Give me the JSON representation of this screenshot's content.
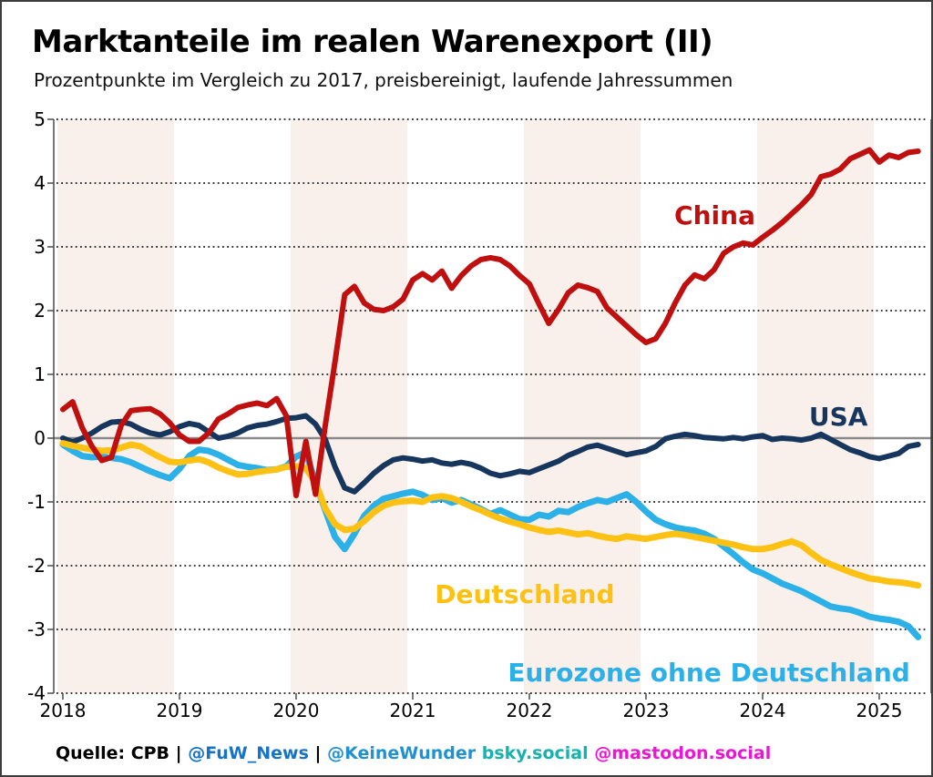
{
  "header": {
    "title": "Marktanteile im realen Warenexport (II)",
    "subtitle": "Prozentpunkte im Vergleich zu 2017, preisbereinigt, laufende Jahressummen"
  },
  "footer": {
    "segments": [
      {
        "text": "Quelle: CPB",
        "color": "#000000"
      },
      {
        "text": " | ",
        "color": "#000000"
      },
      {
        "text": "@FuW_News",
        "color": "#1673c6"
      },
      {
        "text": " | ",
        "color": "#000000"
      },
      {
        "text": "@KeineWunder",
        "color": "#2091d1"
      },
      {
        "text": " ",
        "color": "#000000"
      },
      {
        "text": "bsky.social",
        "color": "#16b2ad"
      },
      {
        "text": " ",
        "color": "#000000"
      },
      {
        "text": "@mastodon.social",
        "color": "#ef13d4"
      }
    ]
  },
  "chart_data": {
    "type": "line",
    "title": "Marktanteile im realen Warenexport (II)",
    "subtitle": "Prozentpunkte im Vergleich zu 2017, preisbereinigt, laufende Jahressummen",
    "xlabel": "",
    "ylabel": "",
    "x_monthly_start": "2018-01",
    "x_monthly_end": "2025-05",
    "xticks": [
      2018,
      2019,
      2020,
      2021,
      2022,
      2023,
      2024,
      2025
    ],
    "ylim": [
      -4,
      5
    ],
    "yticks": [
      5,
      4,
      3,
      2,
      1,
      0,
      -1,
      -2,
      -3,
      -4
    ],
    "grid": "horizontal dotted black lines at every integer",
    "zero_line": true,
    "legend_position": "inline annotations next to lines",
    "background_band_years": [
      2018,
      2020,
      2022,
      2024
    ],
    "colors": {
      "band": "#faf0eb",
      "zero_line": "#8a8a8a",
      "spine": "#4a4a4a",
      "grid": "#1c1c1c"
    },
    "series": [
      {
        "name": "China",
        "color": "#c00f0f",
        "stroke": 6,
        "z": 4,
        "values": [
          0.45,
          0.57,
          0.16,
          -0.13,
          -0.35,
          -0.3,
          0.2,
          0.43,
          0.45,
          0.46,
          0.38,
          0.24,
          0.05,
          -0.05,
          -0.05,
          0.08,
          0.3,
          0.38,
          0.48,
          0.52,
          0.55,
          0.51,
          0.62,
          0.35,
          -0.9,
          -0.05,
          -0.88,
          0.2,
          1.2,
          2.25,
          2.38,
          2.12,
          2.02,
          2.0,
          2.06,
          2.18,
          2.48,
          2.58,
          2.48,
          2.62,
          2.35,
          2.55,
          2.7,
          2.8,
          2.83,
          2.8,
          2.7,
          2.55,
          2.42,
          2.1,
          1.8,
          2.02,
          2.28,
          2.4,
          2.36,
          2.3,
          2.04,
          1.9,
          1.76,
          1.62,
          1.5,
          1.56,
          1.8,
          2.12,
          2.4,
          2.56,
          2.5,
          2.64,
          2.9,
          3.0,
          3.06,
          3.03,
          3.15,
          3.26,
          3.38,
          3.52,
          3.66,
          3.82,
          4.1,
          4.14,
          4.22,
          4.38,
          4.45,
          4.52,
          4.33,
          4.44,
          4.4,
          4.48,
          4.5
        ]
      },
      {
        "name": "USA",
        "color": "#17365d",
        "stroke": 6,
        "z": 1,
        "values": [
          0.0,
          -0.06,
          0.0,
          0.08,
          0.18,
          0.25,
          0.26,
          0.22,
          0.14,
          0.08,
          0.05,
          0.1,
          0.18,
          0.23,
          0.2,
          0.1,
          0.0,
          0.03,
          0.08,
          0.16,
          0.2,
          0.22,
          0.26,
          0.31,
          0.32,
          0.35,
          0.22,
          -0.02,
          -0.45,
          -0.78,
          -0.84,
          -0.7,
          -0.55,
          -0.43,
          -0.34,
          -0.31,
          -0.33,
          -0.36,
          -0.34,
          -0.39,
          -0.41,
          -0.38,
          -0.41,
          -0.47,
          -0.55,
          -0.59,
          -0.56,
          -0.52,
          -0.54,
          -0.48,
          -0.42,
          -0.36,
          -0.27,
          -0.21,
          -0.14,
          -0.11,
          -0.16,
          -0.21,
          -0.26,
          -0.23,
          -0.2,
          -0.13,
          -0.01,
          0.03,
          0.06,
          0.04,
          0.01,
          0.0,
          -0.01,
          0.01,
          -0.01,
          0.02,
          0.04,
          -0.02,
          0.0,
          -0.01,
          -0.03,
          0.0,
          0.06,
          -0.02,
          -0.1,
          -0.18,
          -0.23,
          -0.29,
          -0.32,
          -0.28,
          -0.24,
          -0.13,
          -0.1
        ]
      },
      {
        "name": "Deutschland",
        "color": "#fdc113",
        "stroke": 7,
        "z": 3,
        "values": [
          -0.08,
          -0.12,
          -0.15,
          -0.18,
          -0.2,
          -0.19,
          -0.15,
          -0.1,
          -0.13,
          -0.22,
          -0.3,
          -0.37,
          -0.38,
          -0.35,
          -0.33,
          -0.38,
          -0.46,
          -0.52,
          -0.57,
          -0.56,
          -0.53,
          -0.51,
          -0.49,
          -0.45,
          -0.44,
          -0.47,
          -0.7,
          -1.1,
          -1.35,
          -1.44,
          -1.42,
          -1.3,
          -1.16,
          -1.06,
          -1.01,
          -0.99,
          -0.98,
          -1.0,
          -0.93,
          -0.91,
          -0.94,
          -1.0,
          -1.07,
          -1.13,
          -1.2,
          -1.26,
          -1.31,
          -1.35,
          -1.4,
          -1.44,
          -1.47,
          -1.45,
          -1.48,
          -1.51,
          -1.49,
          -1.53,
          -1.56,
          -1.58,
          -1.54,
          -1.56,
          -1.58,
          -1.55,
          -1.52,
          -1.5,
          -1.52,
          -1.55,
          -1.58,
          -1.61,
          -1.64,
          -1.67,
          -1.71,
          -1.74,
          -1.74,
          -1.71,
          -1.66,
          -1.62,
          -1.68,
          -1.8,
          -1.91,
          -1.98,
          -2.04,
          -2.1,
          -2.15,
          -2.2,
          -2.22,
          -2.25,
          -2.26,
          -2.28,
          -2.31
        ]
      },
      {
        "name": "Eurozone ohne Deutschland",
        "color": "#2bb0e8",
        "stroke": 7,
        "z": 2,
        "values": [
          -0.1,
          -0.2,
          -0.28,
          -0.3,
          -0.29,
          -0.31,
          -0.33,
          -0.38,
          -0.45,
          -0.52,
          -0.58,
          -0.63,
          -0.48,
          -0.28,
          -0.18,
          -0.2,
          -0.26,
          -0.34,
          -0.42,
          -0.45,
          -0.47,
          -0.5,
          -0.49,
          -0.44,
          -0.29,
          -0.22,
          -0.7,
          -1.13,
          -1.55,
          -1.74,
          -1.5,
          -1.22,
          -1.06,
          -0.95,
          -0.91,
          -0.87,
          -0.84,
          -0.89,
          -0.97,
          -0.94,
          -1.01,
          -0.97,
          -1.04,
          -1.11,
          -1.19,
          -1.13,
          -1.2,
          -1.27,
          -1.28,
          -1.2,
          -1.23,
          -1.14,
          -1.16,
          -1.08,
          -1.02,
          -0.97,
          -1.0,
          -0.94,
          -0.88,
          -1.0,
          -1.15,
          -1.28,
          -1.35,
          -1.4,
          -1.43,
          -1.45,
          -1.5,
          -1.58,
          -1.7,
          -1.82,
          -1.95,
          -2.06,
          -2.12,
          -2.2,
          -2.28,
          -2.34,
          -2.4,
          -2.48,
          -2.56,
          -2.64,
          -2.67,
          -2.69,
          -2.74,
          -2.8,
          -2.83,
          -2.85,
          -2.88,
          -2.95,
          -3.12
        ]
      }
    ],
    "annotations": [
      {
        "text": "China",
        "color": "#c00f0f",
        "year": 2023.59,
        "value": 3.49
      },
      {
        "text": "USA",
        "color": "#17365d",
        "year": 2024.65,
        "value": 0.33
      },
      {
        "text": "Deutschland",
        "color": "#fdc113",
        "year": 2021.96,
        "value": -2.46
      },
      {
        "text": "Eurozone ohne Deutschland",
        "color": "#2bb0e8",
        "year": 2023.54,
        "value": -3.69
      }
    ]
  }
}
